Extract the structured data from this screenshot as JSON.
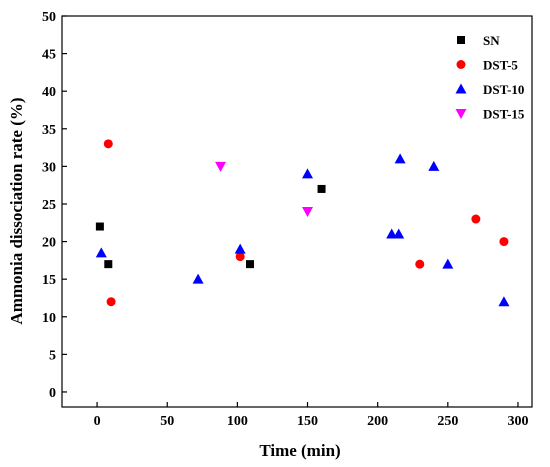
{
  "chart_data": {
    "type": "scatter",
    "title": "",
    "xlabel": "Time (min)",
    "ylabel": "Ammonia dissociation rate (%)",
    "xlim": [
      -25,
      310
    ],
    "ylim": [
      -2,
      50
    ],
    "xticks": [
      0,
      50,
      100,
      150,
      200,
      250,
      300
    ],
    "yticks": [
      0,
      5,
      10,
      15,
      20,
      25,
      30,
      35,
      40,
      45,
      50
    ],
    "xtick_labels": [
      "0",
      "50",
      "100",
      "150",
      "200",
      "250",
      "300"
    ],
    "ytick_labels": [
      "0",
      "5",
      "10",
      "15",
      "20",
      "25",
      "30",
      "35",
      "40",
      "45",
      "50"
    ],
    "grid": false,
    "legend_position": "top-right",
    "series": [
      {
        "name": "SN",
        "marker": "square",
        "color": "#000000",
        "points": [
          [
            2,
            22
          ],
          [
            8,
            17
          ],
          [
            109,
            17
          ],
          [
            160,
            27
          ]
        ]
      },
      {
        "name": "DST-5",
        "marker": "circle",
        "color": "#ff0000",
        "points": [
          [
            8,
            33
          ],
          [
            10,
            12
          ],
          [
            102,
            18
          ],
          [
            230,
            17
          ],
          [
            270,
            23
          ],
          [
            290,
            20
          ]
        ]
      },
      {
        "name": "DST-10",
        "marker": "triangle-up",
        "color": "#0000ff",
        "points": [
          [
            3,
            18.5
          ],
          [
            72,
            15
          ],
          [
            102,
            19
          ],
          [
            150,
            29
          ],
          [
            210,
            21
          ],
          [
            215,
            21
          ],
          [
            216,
            31
          ],
          [
            240,
            30
          ],
          [
            250,
            17
          ],
          [
            290,
            12
          ]
        ]
      },
      {
        "name": "DST-15",
        "marker": "triangle-down",
        "color": "#ff00ff",
        "points": [
          [
            88,
            30
          ],
          [
            150,
            24
          ]
        ]
      }
    ]
  }
}
